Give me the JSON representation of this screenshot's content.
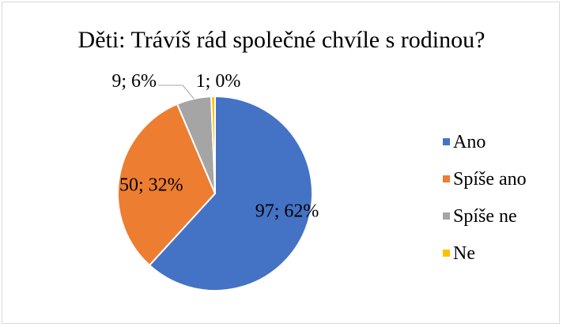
{
  "chart_data": {
    "type": "pie",
    "title": "Děti: Trávíš rád společné chvíle s rodinou?",
    "categories": [
      "Ano",
      "Spíše ano",
      "Spíše ne",
      "Ne"
    ],
    "values": [
      97,
      50,
      9,
      1
    ],
    "data_labels": [
      "97; 62%",
      "50; 32%",
      "9; 6%",
      "1; 0%"
    ],
    "colors": [
      "#4472C4",
      "#ED7D31",
      "#A5A5A5",
      "#FFC000"
    ],
    "legend_position": "right",
    "legend": [
      "Ano",
      "Spíše ano",
      "Spíše ne",
      "Ne"
    ]
  }
}
